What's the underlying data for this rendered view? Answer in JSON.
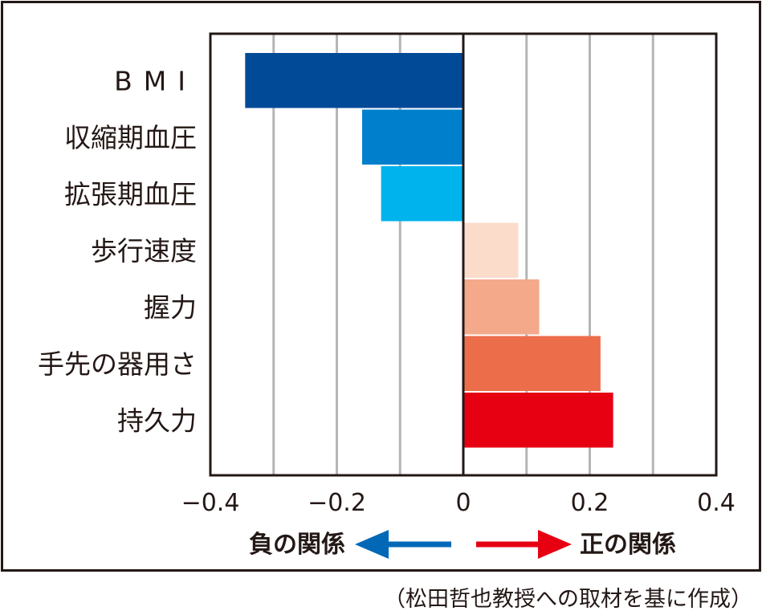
{
  "chart_data": {
    "type": "bar",
    "orientation": "horizontal",
    "categories": [
      "BMI",
      "収縮期血圧",
      "拡張期血圧",
      "歩行速度",
      "握力",
      "手先の器用さ",
      "持久力"
    ],
    "values": [
      -0.345,
      -0.16,
      -0.13,
      0.087,
      0.12,
      0.217,
      0.237
    ],
    "colors": [
      "#004a98",
      "#0080cc",
      "#00b3ec",
      "#fbdccb",
      "#f3a98a",
      "#ec6d4a",
      "#e60012"
    ],
    "xlim": [
      -0.4,
      0.4
    ],
    "xticks": [
      -0.4,
      -0.2,
      0,
      0.2,
      0.4
    ],
    "xtick_labels": [
      "−0.4",
      "−0.2",
      "0",
      "0.2",
      "0.4"
    ],
    "grid": true,
    "title": "",
    "xlabel": "",
    "ylabel": ""
  },
  "legend": {
    "negative_label": "負の関係",
    "positive_label": "正の関係",
    "negative_color": "#0068b7",
    "positive_color": "#e60012"
  },
  "source": "（松田哲也教授への取材を基に作成）"
}
